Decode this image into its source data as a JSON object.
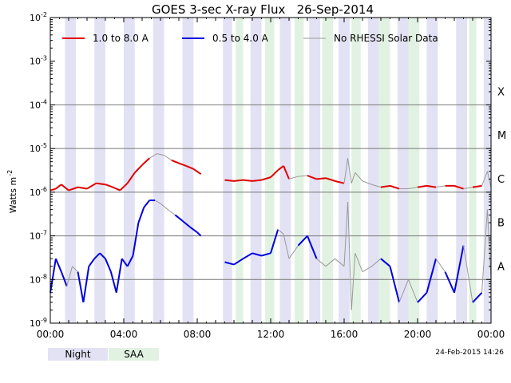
{
  "chart_data": {
    "type": "line",
    "title": "GOES 3-sec X-ray Flux   26-Sep-2014",
    "ylabel": "Watts m",
    "ylabel_sup": "-2",
    "yscale": "log",
    "ylim": [
      1e-09,
      0.01
    ],
    "y_ticks": [
      {
        "exp": "-9"
      },
      {
        "exp": "-8"
      },
      {
        "exp": "-7"
      },
      {
        "exp": "-6"
      },
      {
        "exp": "-5"
      },
      {
        "exp": "-4"
      },
      {
        "exp": "-3"
      },
      {
        "exp": "-2"
      }
    ],
    "y_tick_base": "10",
    "xlim": [
      "00:00",
      "24:00"
    ],
    "x_tick_labels": [
      "00:00",
      "04:00",
      "08:00",
      "12:00",
      "16:00",
      "20:00",
      "00:00"
    ],
    "x_tick_hours": [
      0,
      4,
      8,
      12,
      16,
      20,
      24
    ],
    "flare_classes": [
      {
        "label": "X",
        "level": 0.0001
      },
      {
        "label": "M",
        "level": 1e-05
      },
      {
        "label": "C",
        "level": 1e-06
      },
      {
        "label": "B",
        "level": 1e-07
      },
      {
        "label": "A",
        "level": 1e-08
      }
    ],
    "legend": [
      {
        "label": "1.0 to 8.0 A",
        "color": "#e00000"
      },
      {
        "label": "0.5 to 4.0 A",
        "color": "#0000e0"
      },
      {
        "label": "No RHESSI Solar Data",
        "color": "#999999"
      }
    ],
    "night_intervals": [
      [
        0.8,
        1.4
      ],
      [
        2.4,
        3.0
      ],
      [
        4.0,
        4.6
      ],
      [
        5.6,
        6.2
      ],
      [
        7.2,
        7.8
      ],
      [
        9.4,
        9.9
      ],
      [
        10.9,
        11.5
      ],
      [
        12.5,
        13.1
      ],
      [
        14.1,
        14.7
      ],
      [
        15.7,
        16.3
      ],
      [
        17.3,
        17.9
      ],
      [
        18.9,
        19.5
      ],
      [
        20.5,
        21.1
      ],
      [
        22.1,
        22.7
      ],
      [
        23.6,
        24.0
      ]
    ],
    "saa_intervals": [
      [
        10.1,
        10.5
      ],
      [
        11.7,
        12.2
      ],
      [
        13.3,
        13.8
      ],
      [
        14.8,
        15.4
      ],
      [
        16.4,
        16.9
      ],
      [
        17.9,
        18.5
      ],
      [
        19.5,
        20.1
      ],
      [
        22.8,
        23.2
      ]
    ],
    "series": [
      {
        "name": "1.0 to 8.0 A",
        "color": "#e00000",
        "gray_color": "#999999",
        "segments": [
          {
            "x": [
              0.0,
              0.3,
              0.6,
              1.0,
              1.5,
              2.0,
              2.5,
              3.0,
              3.4,
              3.8,
              4.2,
              4.6,
              5.0,
              5.4,
              5.8,
              6.2,
              6.6,
              7.0,
              7.4,
              7.8,
              8.2
            ],
            "y": [
              1.1e-06,
              1.2e-06,
              1.5e-06,
              1.1e-06,
              1.3e-06,
              1.2e-06,
              1.6e-06,
              1.5e-06,
              1.3e-06,
              1.1e-06,
              1.6e-06,
              2.8e-06,
              4.2e-06,
              6e-06,
              7.6e-06,
              7e-06,
              5.4e-06,
              4.6e-06,
              4e-06,
              3.4e-06,
              2.6e-06
            ],
            "gray": [
              false,
              false,
              false,
              false,
              false,
              false,
              false,
              false,
              false,
              false,
              false,
              false,
              false,
              true,
              true,
              true,
              false,
              false,
              false,
              false,
              false
            ]
          },
          {
            "x": [
              9.5,
              10.0,
              10.5,
              11.0,
              11.5,
              12.0,
              12.4,
              12.7,
              13.0,
              13.5,
              14.0,
              14.5,
              15.0,
              15.5,
              16.0,
              16.2,
              16.4,
              16.6,
              17.0,
              17.5,
              18.0,
              18.5,
              19.0,
              19.5,
              20.0,
              20.5,
              21.0,
              21.5,
              22.0,
              22.5,
              23.0,
              23.5,
              23.8,
              24.0
            ],
            "y": [
              1.9e-06,
              1.8e-06,
              1.9e-06,
              1.8e-06,
              1.9e-06,
              2.2e-06,
              3.2e-06,
              4e-06,
              2e-06,
              2.3e-06,
              2.4e-06,
              2e-06,
              2.1e-06,
              1.8e-06,
              1.6e-06,
              6e-06,
              1.6e-06,
              2.8e-06,
              1.8e-06,
              1.5e-06,
              1.3e-06,
              1.4e-06,
              1.2e-06,
              1.2e-06,
              1.3e-06,
              1.4e-06,
              1.3e-06,
              1.4e-06,
              1.4e-06,
              1.2e-06,
              1.3e-06,
              1.4e-06,
              3e-06,
              1.3e-06
            ],
            "gray": [
              false,
              false,
              false,
              false,
              false,
              false,
              false,
              false,
              true,
              true,
              false,
              false,
              false,
              false,
              true,
              true,
              true,
              true,
              true,
              true,
              false,
              false,
              true,
              true,
              false,
              false,
              true,
              false,
              false,
              true,
              false,
              true,
              true,
              false
            ]
          }
        ]
      },
      {
        "name": "0.5 to 4.0 A",
        "color": "#0000e0",
        "gray_color": "#999999",
        "segments": [
          {
            "x": [
              0.0,
              0.3,
              0.6,
              0.9,
              1.2,
              1.5,
              1.8,
              2.1,
              2.4,
              2.7,
              3.0,
              3.3,
              3.6,
              3.9,
              4.2,
              4.5,
              4.8,
              5.1,
              5.4,
              5.7,
              6.0,
              6.4,
              6.8,
              7.2,
              7.6,
              8.0,
              8.2
            ],
            "y": [
              5e-09,
              3e-08,
              1.5e-08,
              7e-09,
              2e-08,
              1.5e-08,
              3e-09,
              2e-08,
              3e-08,
              4e-08,
              3e-08,
              1.5e-08,
              5e-09,
              3e-08,
              2e-08,
              3.5e-08,
              2e-07,
              4.5e-07,
              6.5e-07,
              6.5e-07,
              5.5e-07,
              4e-07,
              3e-07,
              2.2e-07,
              1.6e-07,
              1.2e-07,
              1e-07
            ],
            "gray": [
              false,
              false,
              false,
              true,
              true,
              false,
              false,
              false,
              false,
              false,
              false,
              false,
              false,
              false,
              false,
              false,
              false,
              false,
              false,
              true,
              true,
              true,
              false,
              false,
              false,
              false,
              false
            ]
          },
          {
            "x": [
              9.5,
              10.0,
              10.5,
              11.0,
              11.5,
              12.0,
              12.4,
              12.7,
              13.0,
              13.5,
              14.0,
              14.5,
              15.0,
              15.5,
              16.0,
              16.2,
              16.4,
              16.6,
              17.0,
              17.5,
              18.0,
              18.5,
              19.0,
              19.5,
              20.0,
              20.5,
              21.0,
              21.5,
              22.0,
              22.5,
              23.0,
              23.5,
              23.8,
              24.0
            ],
            "y": [
              2.5e-08,
              2.2e-08,
              3e-08,
              4e-08,
              3.5e-08,
              4e-08,
              1.4e-07,
              1.1e-07,
              3e-08,
              6e-08,
              1e-07,
              3e-08,
              2e-08,
              3e-08,
              2e-08,
              6e-07,
              2e-09,
              4e-08,
              1.5e-08,
              2e-08,
              3e-08,
              2e-08,
              3e-09,
              1e-08,
              3e-09,
              5e-09,
              3e-08,
              1.5e-08,
              5e-09,
              6e-08,
              3e-09,
              5e-09,
              4e-07,
              1e-08
            ],
            "gray": [
              false,
              false,
              false,
              false,
              false,
              false,
              true,
              true,
              true,
              false,
              false,
              true,
              true,
              true,
              true,
              true,
              true,
              true,
              true,
              true,
              false,
              false,
              true,
              true,
              false,
              false,
              true,
              false,
              false,
              true,
              false,
              true,
              true,
              false
            ]
          }
        ]
      }
    ]
  },
  "footer": {
    "night_label": "Night",
    "saa_label": "SAA",
    "night_color": "#e2e2f4",
    "saa_color": "#e2f2e2",
    "timestamp": "24-Feb-2015 14:26"
  }
}
